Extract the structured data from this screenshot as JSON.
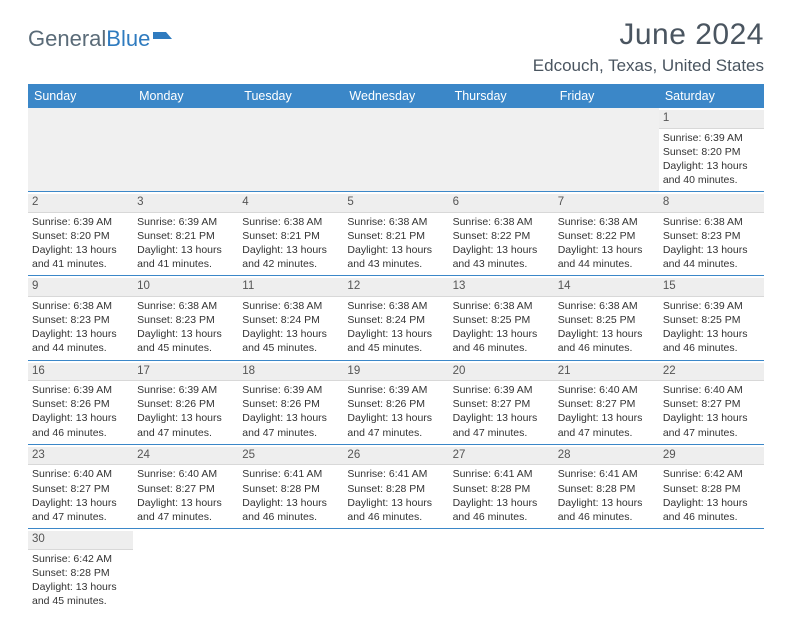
{
  "logo": {
    "part1": "General",
    "part2": "Blue"
  },
  "title": "June 2024",
  "location": "Edcouch, Texas, United States",
  "colors": {
    "header_bg": "#3b87c8",
    "header_text": "#ffffff",
    "title_text": "#4a5560",
    "logo_gray": "#5a6b78",
    "logo_blue": "#2f7bbf",
    "cell_border": "#3b87c8",
    "daynum_bg": "#eeeeee",
    "blank_bg": "#f0f0f0"
  },
  "weekdays": [
    "Sunday",
    "Monday",
    "Tuesday",
    "Wednesday",
    "Thursday",
    "Friday",
    "Saturday"
  ],
  "weeks": [
    [
      null,
      null,
      null,
      null,
      null,
      null,
      {
        "d": "1",
        "sr": "6:39 AM",
        "ss": "8:20 PM",
        "dl": "13 hours and 40 minutes."
      }
    ],
    [
      {
        "d": "2",
        "sr": "6:39 AM",
        "ss": "8:20 PM",
        "dl": "13 hours and 41 minutes."
      },
      {
        "d": "3",
        "sr": "6:39 AM",
        "ss": "8:21 PM",
        "dl": "13 hours and 41 minutes."
      },
      {
        "d": "4",
        "sr": "6:38 AM",
        "ss": "8:21 PM",
        "dl": "13 hours and 42 minutes."
      },
      {
        "d": "5",
        "sr": "6:38 AM",
        "ss": "8:21 PM",
        "dl": "13 hours and 43 minutes."
      },
      {
        "d": "6",
        "sr": "6:38 AM",
        "ss": "8:22 PM",
        "dl": "13 hours and 43 minutes."
      },
      {
        "d": "7",
        "sr": "6:38 AM",
        "ss": "8:22 PM",
        "dl": "13 hours and 44 minutes."
      },
      {
        "d": "8",
        "sr": "6:38 AM",
        "ss": "8:23 PM",
        "dl": "13 hours and 44 minutes."
      }
    ],
    [
      {
        "d": "9",
        "sr": "6:38 AM",
        "ss": "8:23 PM",
        "dl": "13 hours and 44 minutes."
      },
      {
        "d": "10",
        "sr": "6:38 AM",
        "ss": "8:23 PM",
        "dl": "13 hours and 45 minutes."
      },
      {
        "d": "11",
        "sr": "6:38 AM",
        "ss": "8:24 PM",
        "dl": "13 hours and 45 minutes."
      },
      {
        "d": "12",
        "sr": "6:38 AM",
        "ss": "8:24 PM",
        "dl": "13 hours and 45 minutes."
      },
      {
        "d": "13",
        "sr": "6:38 AM",
        "ss": "8:25 PM",
        "dl": "13 hours and 46 minutes."
      },
      {
        "d": "14",
        "sr": "6:38 AM",
        "ss": "8:25 PM",
        "dl": "13 hours and 46 minutes."
      },
      {
        "d": "15",
        "sr": "6:39 AM",
        "ss": "8:25 PM",
        "dl": "13 hours and 46 minutes."
      }
    ],
    [
      {
        "d": "16",
        "sr": "6:39 AM",
        "ss": "8:26 PM",
        "dl": "13 hours and 46 minutes."
      },
      {
        "d": "17",
        "sr": "6:39 AM",
        "ss": "8:26 PM",
        "dl": "13 hours and 47 minutes."
      },
      {
        "d": "18",
        "sr": "6:39 AM",
        "ss": "8:26 PM",
        "dl": "13 hours and 47 minutes."
      },
      {
        "d": "19",
        "sr": "6:39 AM",
        "ss": "8:26 PM",
        "dl": "13 hours and 47 minutes."
      },
      {
        "d": "20",
        "sr": "6:39 AM",
        "ss": "8:27 PM",
        "dl": "13 hours and 47 minutes."
      },
      {
        "d": "21",
        "sr": "6:40 AM",
        "ss": "8:27 PM",
        "dl": "13 hours and 47 minutes."
      },
      {
        "d": "22",
        "sr": "6:40 AM",
        "ss": "8:27 PM",
        "dl": "13 hours and 47 minutes."
      }
    ],
    [
      {
        "d": "23",
        "sr": "6:40 AM",
        "ss": "8:27 PM",
        "dl": "13 hours and 47 minutes."
      },
      {
        "d": "24",
        "sr": "6:40 AM",
        "ss": "8:27 PM",
        "dl": "13 hours and 47 minutes."
      },
      {
        "d": "25",
        "sr": "6:41 AM",
        "ss": "8:28 PM",
        "dl": "13 hours and 46 minutes."
      },
      {
        "d": "26",
        "sr": "6:41 AM",
        "ss": "8:28 PM",
        "dl": "13 hours and 46 minutes."
      },
      {
        "d": "27",
        "sr": "6:41 AM",
        "ss": "8:28 PM",
        "dl": "13 hours and 46 minutes."
      },
      {
        "d": "28",
        "sr": "6:41 AM",
        "ss": "8:28 PM",
        "dl": "13 hours and 46 minutes."
      },
      {
        "d": "29",
        "sr": "6:42 AM",
        "ss": "8:28 PM",
        "dl": "13 hours and 46 minutes."
      }
    ],
    [
      {
        "d": "30",
        "sr": "6:42 AM",
        "ss": "8:28 PM",
        "dl": "13 hours and 45 minutes."
      },
      null,
      null,
      null,
      null,
      null,
      null
    ]
  ],
  "labels": {
    "sunrise": "Sunrise:",
    "sunset": "Sunset:",
    "daylight": "Daylight:"
  }
}
